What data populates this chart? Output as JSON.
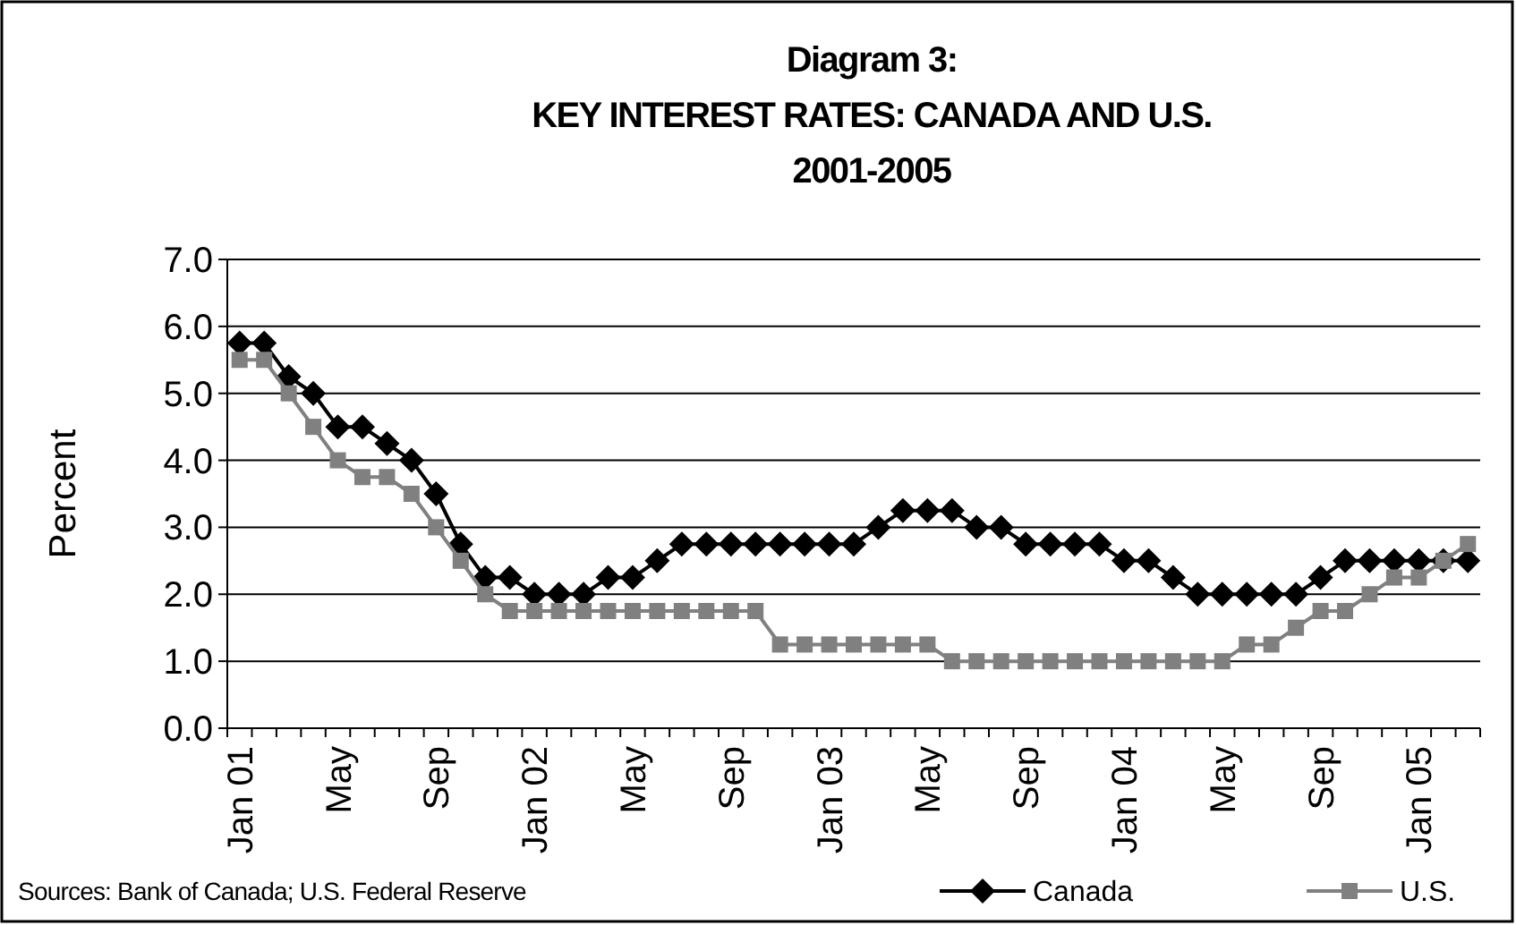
{
  "chart_data": {
    "type": "line",
    "title": "Diagram 3:\nKEY INTEREST RATES: CANADA AND U.S.\n2001-2005",
    "ylabel": "Percent",
    "categories": [
      "Jan 01",
      null,
      null,
      null,
      "May",
      null,
      null,
      null,
      "Sep",
      null,
      null,
      null,
      "Jan 02",
      null,
      null,
      null,
      "May",
      null,
      null,
      null,
      "Sep",
      null,
      null,
      null,
      "Jan 03",
      null,
      null,
      null,
      "May",
      null,
      null,
      null,
      "Sep",
      null,
      null,
      null,
      "Jan 04",
      null,
      null,
      null,
      "May",
      null,
      null,
      null,
      "Sep",
      null,
      null,
      null,
      "Jan 05",
      null,
      null
    ],
    "series": [
      {
        "name": "Canada",
        "color": "#000000",
        "marker": "diamond",
        "values": [
          5.75,
          5.75,
          5.25,
          5.0,
          4.5,
          4.5,
          4.25,
          4.0,
          3.5,
          2.75,
          2.25,
          2.25,
          2.0,
          2.0,
          2.0,
          2.25,
          2.25,
          2.5,
          2.75,
          2.75,
          2.75,
          2.75,
          2.75,
          2.75,
          2.75,
          2.75,
          3.0,
          3.25,
          3.25,
          3.25,
          3.0,
          3.0,
          2.75,
          2.75,
          2.75,
          2.75,
          2.5,
          2.5,
          2.25,
          2.0,
          2.0,
          2.0,
          2.0,
          2.0,
          2.25,
          2.5,
          2.5,
          2.5,
          2.5,
          2.5,
          2.5
        ]
      },
      {
        "name": "U.S.",
        "color": "#808080",
        "marker": "square",
        "values": [
          5.5,
          5.5,
          5.0,
          4.5,
          4.0,
          3.75,
          3.75,
          3.5,
          3.0,
          2.5,
          2.0,
          1.75,
          1.75,
          1.75,
          1.75,
          1.75,
          1.75,
          1.75,
          1.75,
          1.75,
          1.75,
          1.75,
          1.25,
          1.25,
          1.25,
          1.25,
          1.25,
          1.25,
          1.25,
          1.0,
          1.0,
          1.0,
          1.0,
          1.0,
          1.0,
          1.0,
          1.0,
          1.0,
          1.0,
          1.0,
          1.0,
          1.25,
          1.25,
          1.5,
          1.75,
          1.75,
          2.0,
          2.25,
          2.25,
          2.5,
          2.75
        ]
      }
    ],
    "ylim": [
      0,
      7
    ],
    "yticks": [
      {
        "value": 0,
        "label": "0.0"
      },
      {
        "value": 1,
        "label": "1.0"
      },
      {
        "value": 2,
        "label": "2.0"
      },
      {
        "value": 3,
        "label": "3.0"
      },
      {
        "value": 4,
        "label": "4.0"
      },
      {
        "value": 5,
        "label": "5.0"
      },
      {
        "value": 6,
        "label": "6.0"
      },
      {
        "value": 7,
        "label": "7.0"
      }
    ],
    "grid": "y",
    "legend": "bottom right",
    "annotations": [
      "Sources: Bank of Canada; U.S. Federal Reserve"
    ]
  }
}
